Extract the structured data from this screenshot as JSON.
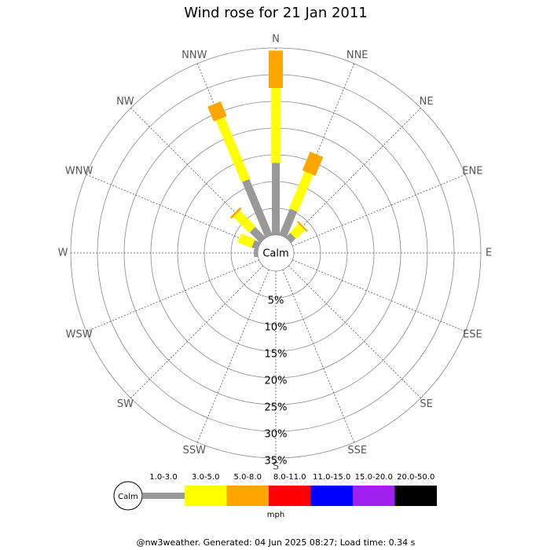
{
  "chart_data": {
    "type": "windrose",
    "title": "Wind rose for 21 Jan 2011",
    "categories": [
      "N",
      "NNE",
      "NE",
      "ENE",
      "E",
      "ESE",
      "SE",
      "SSE",
      "S",
      "SSW",
      "SW",
      "WSW",
      "W",
      "WNW",
      "NW",
      "NNW"
    ],
    "series": [
      {
        "name": "1.0-3.0",
        "color": "#999999",
        "values": [
          13.5,
          5.3,
          1.2,
          0,
          0,
          0,
          0,
          0,
          0,
          0,
          0,
          0,
          0.7,
          1.2,
          2.8,
          11.3
        ]
      },
      {
        "name": "3.0-5.0",
        "color": "#ffff00",
        "values": [
          14,
          7.5,
          2.3,
          0,
          0,
          0,
          0,
          0,
          0,
          0,
          0,
          0,
          0,
          2.8,
          4.2,
          12.5
        ]
      },
      {
        "name": "5.0-8.0",
        "color": "#ffa500",
        "values": [
          7,
          3.8,
          0.3,
          0,
          0,
          0,
          0,
          0,
          0,
          0,
          0,
          0,
          0,
          0,
          0.4,
          3
        ]
      },
      {
        "name": "8.0-11.0",
        "color": "#ff0000",
        "values": [
          0,
          0,
          0,
          0,
          0,
          0,
          0,
          0,
          0,
          0,
          0,
          0,
          0,
          0,
          0,
          0
        ]
      },
      {
        "name": "11.0-15.0",
        "color": "#0000ff",
        "values": [
          0,
          0,
          0,
          0,
          0,
          0,
          0,
          0,
          0,
          0,
          0,
          0,
          0,
          0,
          0,
          0
        ]
      },
      {
        "name": "15.0-20.0",
        "color": "#a020f0",
        "values": [
          0,
          0,
          0,
          0,
          0,
          0,
          0,
          0,
          0,
          0,
          0,
          0,
          0,
          0,
          0,
          0
        ]
      },
      {
        "name": "20.0-50.0",
        "color": "#000000",
        "values": [
          0,
          0,
          0,
          0,
          0,
          0,
          0,
          0,
          0,
          0,
          0,
          0,
          0,
          0,
          0,
          0
        ]
      }
    ],
    "ylim": [
      0,
      35
    ],
    "yticks": [
      {
        "value": 5,
        "label": "5%"
      },
      {
        "value": 10,
        "label": "10%"
      },
      {
        "value": 15,
        "label": "15%"
      },
      {
        "value": 20,
        "label": "20%"
      },
      {
        "value": 25,
        "label": "25%"
      },
      {
        "value": 30,
        "label": "30%"
      },
      {
        "value": 35,
        "label": "35%"
      }
    ],
    "calm_label": "Calm",
    "legend_unit": "mph",
    "footer": "@nw3weather. Generated: 04 Jun 2025 08:27; Load time: 0.34 s"
  }
}
